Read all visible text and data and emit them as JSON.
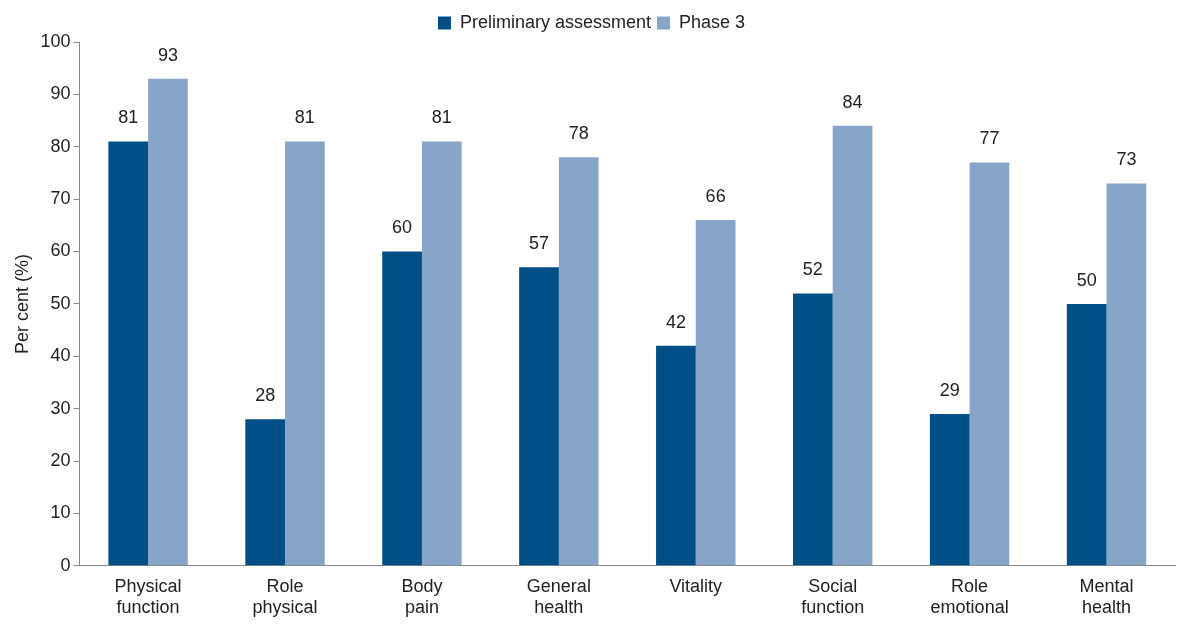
{
  "chart_data": {
    "type": "bar",
    "ylabel": "Per cent (%)",
    "categories": [
      "Physical function",
      "Role physical",
      "Body pain",
      "General health",
      "Vitality",
      "Social function",
      "Role emotional",
      "Mental health"
    ],
    "series": [
      {
        "name": "Preliminary assessment",
        "color": "#004f86",
        "values": [
          81,
          28,
          60,
          57,
          42,
          52,
          29,
          50
        ]
      },
      {
        "name": "Phase 3",
        "color": "#87a5c8",
        "values": [
          93,
          81,
          81,
          78,
          66,
          84,
          77,
          73
        ]
      }
    ],
    "ylim": [
      0,
      100
    ],
    "yticks": [
      0,
      10,
      20,
      30,
      40,
      50,
      60,
      70,
      80,
      90,
      100
    ],
    "grid": false,
    "legend": "top",
    "data_labels": true
  }
}
